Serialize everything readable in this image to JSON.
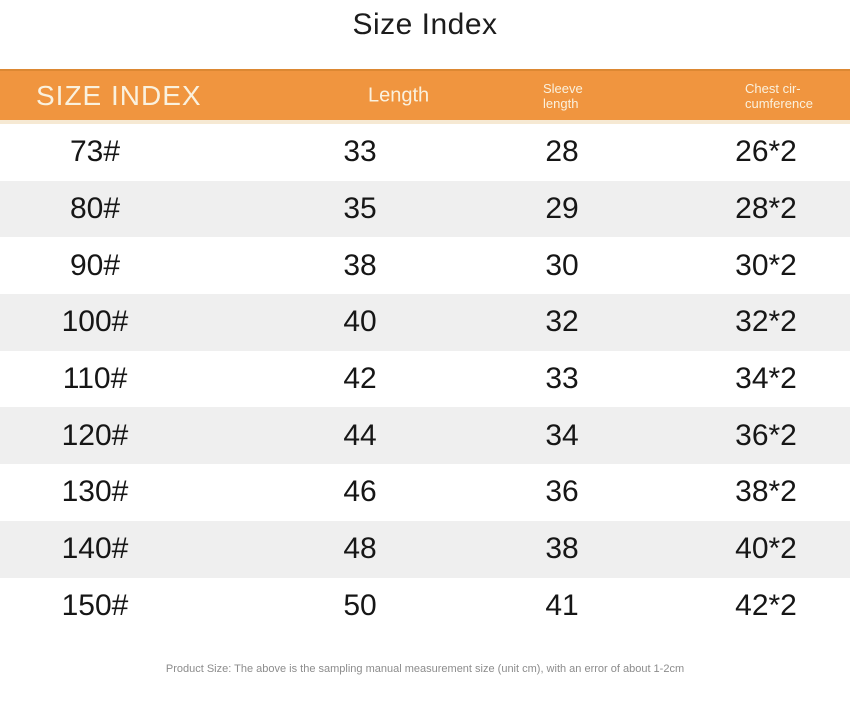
{
  "page_title": "Size Index",
  "accent_color": "#F0953F",
  "row_alt_color": "#EFEFEF",
  "table": {
    "header": {
      "size_label": "SIZE INDEX",
      "length_label": "Length",
      "sleeve_line1": "Sleeve",
      "sleeve_line2": "length",
      "chest_line1": "Chest cir-",
      "chest_line2": "cumference"
    },
    "rows": [
      {
        "size": "73#",
        "length": "33",
        "sleeve": "28",
        "chest": "26*2"
      },
      {
        "size": "80#",
        "length": "35",
        "sleeve": "29",
        "chest": "28*2"
      },
      {
        "size": "90#",
        "length": "38",
        "sleeve": "30",
        "chest": "30*2"
      },
      {
        "size": "100#",
        "length": "40",
        "sleeve": "32",
        "chest": "32*2"
      },
      {
        "size": "110#",
        "length": "42",
        "sleeve": "33",
        "chest": "34*2"
      },
      {
        "size": "120#",
        "length": "44",
        "sleeve": "34",
        "chest": "36*2"
      },
      {
        "size": "130#",
        "length": "46",
        "sleeve": "36",
        "chest": "38*2"
      },
      {
        "size": "140#",
        "length": "48",
        "sleeve": "38",
        "chest": "40*2"
      },
      {
        "size": "150#",
        "length": "50",
        "sleeve": "41",
        "chest": "42*2"
      }
    ]
  },
  "footer_note": "Product Size: The above is the sampling manual measurement size (unit cm), with an error of about 1-2cm",
  "chart_data": {
    "type": "table",
    "title": "Size Index",
    "columns": [
      "SIZE INDEX",
      "Length",
      "Sleeve length",
      "Chest circumference"
    ],
    "rows": [
      [
        "73#",
        33,
        28,
        "26*2"
      ],
      [
        "80#",
        35,
        29,
        "28*2"
      ],
      [
        "90#",
        38,
        30,
        "30*2"
      ],
      [
        "100#",
        40,
        32,
        "32*2"
      ],
      [
        "110#",
        42,
        33,
        "34*2"
      ],
      [
        "120#",
        44,
        34,
        "36*2"
      ],
      [
        "130#",
        46,
        36,
        "38*2"
      ],
      [
        "140#",
        48,
        38,
        "40*2"
      ],
      [
        "150#",
        50,
        41,
        "42*2"
      ]
    ],
    "note": "Product Size: The above is the sampling manual measurement size (unit cm), with an error of about 1-2cm",
    "unit": "cm"
  }
}
